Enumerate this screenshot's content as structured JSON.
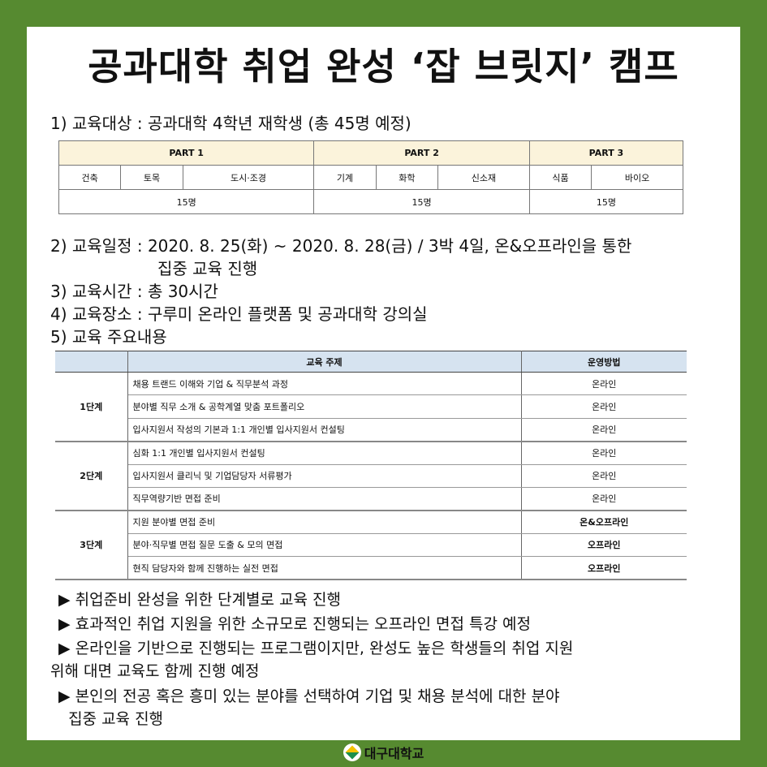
{
  "title": "공과대학 취업 완성 ‘잡 브릿지’ 캠프",
  "sections": {
    "s1": "1) 교육대상 : 공과대학 4학년 재학생 (총 45명 예정)",
    "s2a": "2) 교육일정 : 2020. 8. 25(화) ~ 2020. 8. 28(금) / 3박 4일, 온&오프라인을 통한",
    "s2b": "집중 교육 진행",
    "s3": "3) 교육시간 : 총 30시간",
    "s4": "4) 교육장소 : 구루미 온라인 플랫폼 및 공과대학 강의실",
    "s5": "5) 교육 주요내용"
  },
  "parts": {
    "headers": [
      "PART 1",
      "PART 2",
      "PART 3"
    ],
    "majors": [
      "건축",
      "토목",
      "도시·조경",
      "기계",
      "화학",
      "신소재",
      "식품",
      "바이오"
    ],
    "counts": [
      "15명",
      "15명",
      "15명"
    ]
  },
  "curriculum": {
    "col_topic": "교육 주제",
    "col_method": "운영방법",
    "stages": [
      {
        "name": "1단계",
        "rows": [
          [
            "채용 트랜드 이해와 기업 & 직무분석 과정",
            "온라인"
          ],
          [
            "분야별 직무 소개 & 공학계열 맞춤 포트폴리오",
            "온라인"
          ],
          [
            "입사지원서 작성의 기본과 1:1 개인별 입사지원서 컨설팅",
            "온라인"
          ]
        ]
      },
      {
        "name": "2단계",
        "rows": [
          [
            "심화 1:1 개인별 입사지원서 컨설팅",
            "온라인"
          ],
          [
            "입사지원서 클리닉 및 기업담당자 서류평가",
            "온라인"
          ],
          [
            "직무역량기반 면접 준비",
            "온라인"
          ]
        ]
      },
      {
        "name": "3단계",
        "rows": [
          [
            "지원 분야별 면접 준비",
            "온&오프라인"
          ],
          [
            "분야·직무별 면접 질문 도출 & 모의 면접",
            "오프라인"
          ],
          [
            "현직 담당자와 함께 진행하는 실전 면접",
            "오프라인"
          ]
        ]
      }
    ]
  },
  "bullets": [
    "▶ 취업준비 완성을 위한 단계별로 교육 진행",
    "▶ 효과적인 취업 지원을 위한 소규모로 진행되는 오프라인 면접 특강 예정",
    "▶ 온라인을 기반으로 진행되는 프로그램이지만, 완성도 높은 학생들의 취업 지원",
    "위해 대면 교육도 함께 진행 예정",
    "▶ 본인의 전공 혹은 흥미 있는 분야를 선택하여 기업 및 채용 분석에 대한 분야",
    "  집중 교육 진행"
  ],
  "footer": {
    "university": "대구대학교"
  },
  "colors": {
    "background": "#568a30",
    "part_header": "#fbf3db",
    "table_header": "#d6e3f0"
  }
}
